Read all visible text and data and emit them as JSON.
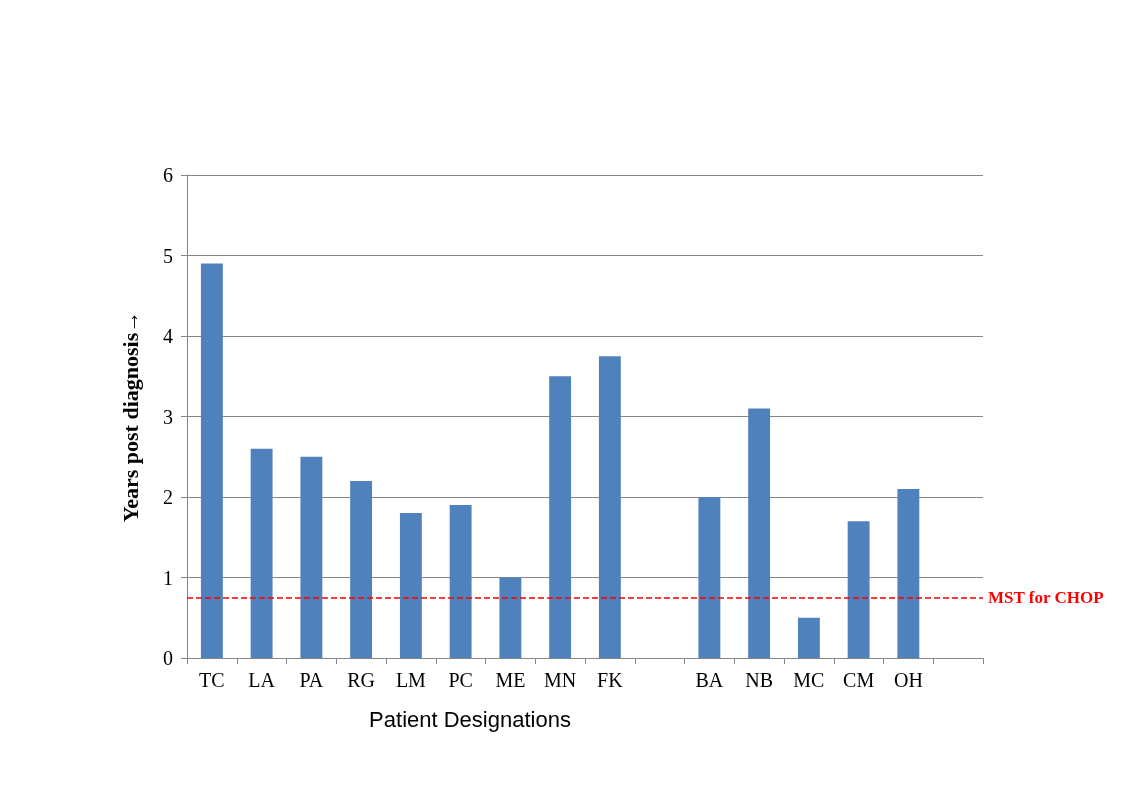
{
  "chart_data": {
    "type": "bar",
    "xlabel": "Patient Designations",
    "ylabel": "Years post diagnosis→",
    "categories": [
      "TC",
      "LA",
      "PA",
      "RG",
      "LM",
      "PC",
      "ME",
      "MN",
      "FK",
      null,
      "BA",
      "NB",
      "MC",
      "CM",
      "OH",
      null
    ],
    "values": [
      4.9,
      2.6,
      2.5,
      2.2,
      1.8,
      1.9,
      1.0,
      3.5,
      3.75,
      null,
      2.0,
      3.1,
      0.5,
      1.7,
      2.1,
      null
    ],
    "color": "#4f81bd",
    "ylim": [
      0,
      6
    ],
    "yticks": [
      0,
      1,
      2,
      3,
      4,
      5,
      6
    ],
    "grid": "y",
    "ref_lines": [
      {
        "axis": "y",
        "value": 0.75,
        "label": "MST for CHOP",
        "color": "#ff0000",
        "line_style": "dashed"
      }
    ]
  }
}
